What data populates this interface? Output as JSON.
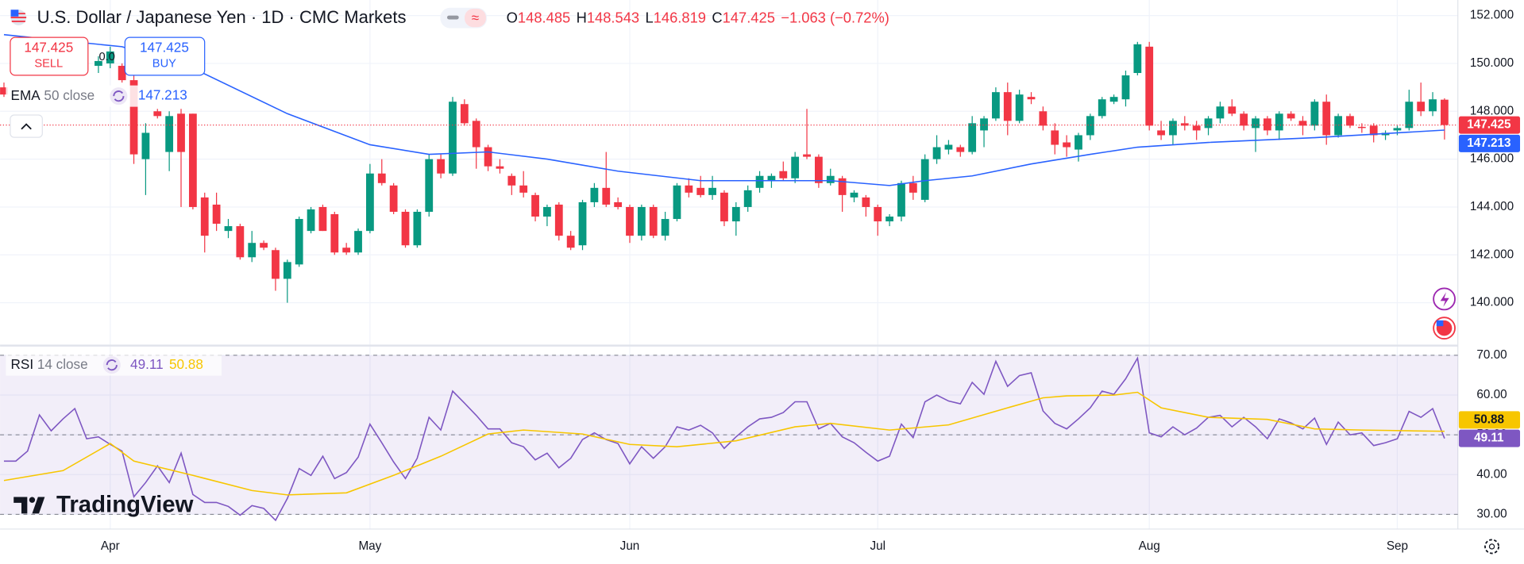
{
  "watermark": "TradingView",
  "chart_data": [
    {
      "type": "candlestick",
      "title": "U.S. Dollar / Japanese Yen · 1D · CMC Markets",
      "ohlc_labels": [
        "O",
        "H",
        "L",
        "C"
      ],
      "change": "−1.063 (−0.72%)",
      "spread": "0.0",
      "sell_label": "SELL",
      "buy_label": "BUY",
      "up_color": "#089981",
      "down_color": "#f23645",
      "grid": true,
      "xlim": [
        -0.33,
        123.13
      ],
      "xticks": [
        {
          "value": 9,
          "label": "Apr"
        },
        {
          "value": 31,
          "label": "May"
        },
        {
          "value": 53,
          "label": "Jun"
        },
        {
          "value": 74,
          "label": "Jul"
        },
        {
          "value": 97,
          "label": "Aug"
        },
        {
          "value": 118,
          "label": "Sep"
        }
      ],
      "ylim": [
        138.25,
        152.65
      ],
      "yticks": [
        {
          "value": 140,
          "label": "140.000"
        },
        {
          "value": 142,
          "label": "142.000"
        },
        {
          "value": 144,
          "label": "144.000"
        },
        {
          "value": 146,
          "label": "146.000"
        },
        {
          "value": 148,
          "label": "148.000"
        },
        {
          "value": 150,
          "label": "150.000"
        },
        {
          "value": 152,
          "label": "152.000"
        }
      ],
      "ohlc": [
        [
          149.0,
          149.2,
          148.6,
          148.7
        ],
        null,
        null,
        null,
        null,
        null,
        null,
        null,
        [
          149.9,
          150.3,
          149.6,
          150.1
        ],
        [
          150.0,
          150.7,
          149.8,
          150.5
        ],
        [
          149.9,
          150.0,
          149.2,
          149.3
        ],
        [
          149.3,
          149.5,
          145.8,
          146.2
        ],
        [
          146.0,
          147.5,
          144.5,
          147.1
        ],
        [
          148.0,
          148.1,
          147.7,
          147.8
        ],
        [
          146.3,
          148.0,
          145.5,
          147.8
        ],
        [
          147.9,
          148.1,
          144.0,
          146.3
        ],
        [
          147.9,
          147.9,
          143.9,
          144.0
        ],
        [
          144.4,
          144.6,
          142.1,
          142.8
        ],
        [
          144.1,
          144.6,
          143.0,
          143.3
        ],
        [
          143.0,
          143.5,
          142.7,
          143.2
        ],
        [
          143.2,
          143.3,
          141.8,
          141.9
        ],
        [
          141.9,
          143.0,
          141.7,
          142.5
        ],
        [
          142.5,
          142.6,
          142.2,
          142.3
        ],
        [
          142.2,
          142.3,
          140.5,
          141.0
        ],
        [
          141.0,
          141.8,
          140.0,
          141.7
        ],
        [
          141.6,
          143.6,
          141.5,
          143.5
        ],
        [
          143.0,
          144.0,
          142.9,
          143.9
        ],
        [
          144.0,
          144.1,
          143.0,
          143.0
        ],
        [
          143.7,
          143.8,
          142.0,
          142.1
        ],
        [
          142.3,
          142.5,
          142.0,
          142.1
        ],
        [
          142.1,
          143.1,
          142.0,
          143.0
        ],
        [
          143.0,
          145.8,
          142.9,
          145.4
        ],
        [
          145.4,
          146.0,
          144.9,
          145.0
        ],
        [
          144.9,
          145.0,
          143.7,
          143.8
        ],
        [
          143.8,
          143.9,
          142.3,
          142.4
        ],
        [
          142.4,
          143.9,
          142.3,
          143.8
        ],
        [
          143.8,
          146.2,
          143.6,
          146.0
        ],
        [
          146.0,
          146.2,
          145.2,
          145.4
        ],
        [
          145.4,
          148.6,
          145.3,
          148.4
        ],
        [
          148.3,
          148.5,
          147.4,
          147.5
        ],
        [
          147.6,
          147.7,
          145.6,
          146.5
        ],
        [
          146.5,
          146.6,
          145.5,
          145.7
        ],
        [
          145.7,
          146.0,
          145.4,
          145.6
        ],
        [
          145.3,
          145.4,
          144.5,
          144.9
        ],
        [
          144.9,
          145.5,
          144.4,
          144.6
        ],
        [
          144.5,
          144.6,
          143.4,
          143.6
        ],
        [
          143.6,
          144.1,
          143.2,
          144.0
        ],
        [
          144.1,
          144.2,
          142.6,
          142.8
        ],
        [
          142.8,
          143.0,
          142.2,
          142.3
        ],
        [
          142.4,
          144.3,
          142.2,
          144.2
        ],
        [
          144.2,
          145.0,
          144.0,
          144.8
        ],
        [
          144.8,
          146.3,
          144.0,
          144.1
        ],
        [
          144.2,
          144.4,
          143.9,
          144.0
        ],
        [
          144.0,
          144.1,
          142.5,
          142.8
        ],
        [
          142.8,
          144.1,
          142.6,
          144.0
        ],
        [
          144.0,
          144.1,
          142.7,
          142.8
        ],
        [
          142.8,
          143.8,
          142.6,
          143.5
        ],
        [
          143.5,
          145.0,
          143.4,
          144.9
        ],
        [
          144.9,
          145.2,
          144.4,
          144.6
        ],
        [
          144.8,
          145.3,
          144.4,
          144.5
        ],
        [
          144.5,
          145.3,
          144.3,
          144.8
        ],
        [
          144.6,
          144.7,
          143.2,
          143.4
        ],
        [
          143.4,
          144.2,
          142.8,
          144.0
        ],
        [
          144.0,
          144.9,
          143.8,
          144.7
        ],
        [
          144.8,
          145.5,
          144.6,
          145.3
        ],
        [
          145.1,
          145.4,
          144.8,
          145.3
        ],
        [
          145.5,
          145.9,
          145.1,
          145.2
        ],
        [
          145.2,
          146.3,
          145.0,
          146.1
        ],
        [
          146.2,
          148.1,
          146.0,
          146.1
        ],
        [
          146.1,
          146.2,
          144.8,
          145.0
        ],
        [
          145.0,
          145.6,
          144.9,
          145.3
        ],
        [
          145.2,
          145.3,
          143.8,
          144.5
        ],
        [
          144.4,
          144.7,
          144.2,
          144.6
        ],
        [
          144.4,
          144.5,
          143.6,
          144.0
        ],
        [
          144.0,
          144.1,
          142.8,
          143.4
        ],
        [
          143.4,
          143.7,
          143.2,
          143.6
        ],
        [
          143.6,
          145.1,
          143.4,
          145.0
        ],
        [
          145.0,
          145.3,
          144.3,
          144.6
        ],
        [
          144.3,
          146.2,
          144.2,
          146.0
        ],
        [
          146.0,
          147.0,
          145.8,
          146.5
        ],
        [
          146.4,
          146.8,
          146.2,
          146.6
        ],
        [
          146.5,
          146.6,
          146.1,
          146.3
        ],
        [
          146.3,
          147.8,
          146.2,
          147.5
        ],
        [
          147.2,
          147.8,
          146.5,
          147.7
        ],
        [
          147.7,
          149.0,
          147.6,
          148.8
        ],
        [
          148.8,
          149.2,
          147.0,
          147.6
        ],
        [
          147.6,
          148.9,
          147.5,
          148.7
        ],
        [
          148.6,
          148.8,
          148.3,
          148.5
        ],
        [
          148.0,
          148.2,
          147.2,
          147.4
        ],
        [
          147.2,
          147.5,
          146.2,
          146.6
        ],
        [
          146.7,
          147.0,
          146.1,
          146.5
        ],
        [
          146.4,
          147.1,
          145.9,
          147.0
        ],
        [
          147.0,
          147.9,
          146.8,
          147.8
        ],
        [
          147.8,
          148.6,
          147.7,
          148.5
        ],
        [
          148.4,
          148.7,
          148.3,
          148.6
        ],
        [
          148.5,
          149.7,
          148.2,
          149.5
        ],
        [
          149.6,
          150.9,
          149.5,
          150.8
        ],
        [
          150.7,
          150.9,
          147.2,
          147.4
        ],
        [
          147.2,
          147.6,
          146.8,
          147.0
        ],
        [
          147.0,
          147.7,
          146.6,
          147.6
        ],
        [
          147.5,
          147.8,
          147.2,
          147.4
        ],
        [
          147.4,
          147.6,
          146.8,
          147.2
        ],
        [
          147.3,
          147.8,
          147.0,
          147.7
        ],
        [
          147.7,
          148.4,
          147.5,
          148.2
        ],
        [
          148.2,
          148.5,
          147.8,
          147.9
        ],
        [
          147.9,
          148.0,
          147.2,
          147.4
        ],
        [
          147.3,
          147.8,
          146.3,
          147.7
        ],
        [
          147.7,
          147.8,
          147.0,
          147.2
        ],
        [
          147.2,
          148.0,
          146.8,
          147.9
        ],
        [
          147.9,
          148.0,
          147.6,
          147.7
        ],
        [
          147.6,
          147.8,
          147.0,
          147.4
        ],
        [
          147.4,
          148.5,
          147.2,
          148.4
        ],
        [
          148.4,
          148.7,
          146.6,
          147.0
        ],
        [
          147.0,
          147.9,
          146.9,
          147.8
        ],
        [
          147.8,
          147.9,
          147.3,
          147.4
        ],
        [
          147.35,
          147.5,
          147.1,
          147.3
        ],
        [
          147.4,
          147.5,
          146.7,
          147.0
        ],
        [
          147.0,
          147.2,
          146.8,
          147.1
        ],
        [
          147.2,
          147.4,
          147.0,
          147.3
        ],
        [
          147.3,
          148.9,
          147.2,
          148.4
        ],
        [
          148.4,
          149.2,
          147.8,
          148.0
        ],
        [
          148.0,
          148.8,
          147.8,
          148.5
        ],
        [
          148.485,
          148.543,
          146.819,
          147.425
        ]
      ],
      "series": [
        {
          "name": "EMA",
          "params": "50 close",
          "color": "#2962ff",
          "x": [
            0,
            10,
            16,
            24,
            31,
            36,
            41,
            46,
            52,
            59,
            65,
            70,
            75,
            78,
            82,
            87,
            92,
            96,
            102,
            111,
            122
          ],
          "values": [
            151.2,
            150.7,
            149.8,
            147.9,
            146.6,
            146.2,
            146.3,
            146.0,
            145.5,
            145.1,
            145.1,
            145.1,
            144.9,
            145.1,
            145.3,
            145.8,
            146.2,
            146.5,
            146.7,
            146.9,
            147.213
          ]
        }
      ]
    },
    {
      "type": "line",
      "name": "RSI",
      "params": "14 close",
      "grid": true,
      "band_color": "#7e57c2",
      "levels": [
        30,
        50,
        70
      ],
      "ylim": [
        26.3,
        72.2
      ],
      "yticks": [
        {
          "value": 30,
          "label": "30.00"
        },
        {
          "value": 40,
          "label": "40.00"
        },
        {
          "value": 50,
          "label": "50.00"
        },
        {
          "value": 60,
          "label": "60.00"
        },
        {
          "value": 70,
          "label": "70.00"
        }
      ],
      "series": [
        {
          "color": "#7e57c2",
          "values": [
            43.4,
            43.4,
            45.9,
            55,
            51,
            54,
            56.6,
            49,
            49.5,
            47.6,
            45.9,
            34.4,
            38,
            42.2,
            38,
            45.4,
            35,
            33,
            33,
            32,
            29.8,
            32.2,
            31.5,
            28.5,
            34,
            41.5,
            39.8,
            44.6,
            39,
            40.5,
            44.4,
            52.7,
            48,
            43.2,
            39,
            44.1,
            54.4,
            51.2,
            61,
            58,
            54.9,
            51.5,
            51.5,
            48,
            47,
            43.7,
            45.4,
            41.7,
            44.1,
            48.8,
            50.5,
            48.8,
            47.8,
            42.7,
            47,
            44.1,
            47,
            52,
            51.2,
            52.4,
            50.5,
            46.6,
            49.5,
            52,
            54,
            54.4,
            55.6,
            58.3,
            58.3,
            51.5,
            52.9,
            49.5,
            48,
            45.6,
            43.4,
            44.6,
            52.7,
            49.3,
            58.3,
            60,
            58.5,
            57.8,
            63.2,
            60.2,
            68.5,
            62.2,
            64.9,
            65.6,
            56,
            52.9,
            51.5,
            54,
            56.8,
            61,
            60.2,
            64.1,
            69.3,
            50.5,
            49.5,
            52,
            50,
            51.7,
            54.4,
            54.9,
            52,
            54.4,
            52,
            49,
            54,
            53,
            51.5,
            54.2,
            47.6,
            53.2,
            50,
            50.5,
            47.3,
            48,
            49,
            55.9,
            54.4,
            56.6,
            49.11
          ]
        },
        {
          "color": "#f7c600",
          "x": [
            0,
            5,
            9,
            11,
            16,
            21,
            24,
            29,
            33,
            37,
            41,
            44,
            49,
            53,
            57,
            62,
            67,
            70,
            75,
            80,
            85,
            88,
            90,
            94,
            96,
            98,
            102,
            107,
            111,
            115,
            119,
            122
          ],
          "values": [
            38.5,
            41,
            47.8,
            43.4,
            39.8,
            36,
            34.9,
            35.4,
            39.8,
            44.6,
            50.2,
            51.2,
            50.2,
            47.6,
            47,
            48.5,
            52,
            52.9,
            51.2,
            52.5,
            56.8,
            59.3,
            59.8,
            60,
            60.7,
            56.8,
            54.4,
            53.9,
            51.5,
            51.2,
            51,
            50.88
          ]
        }
      ]
    }
  ]
}
